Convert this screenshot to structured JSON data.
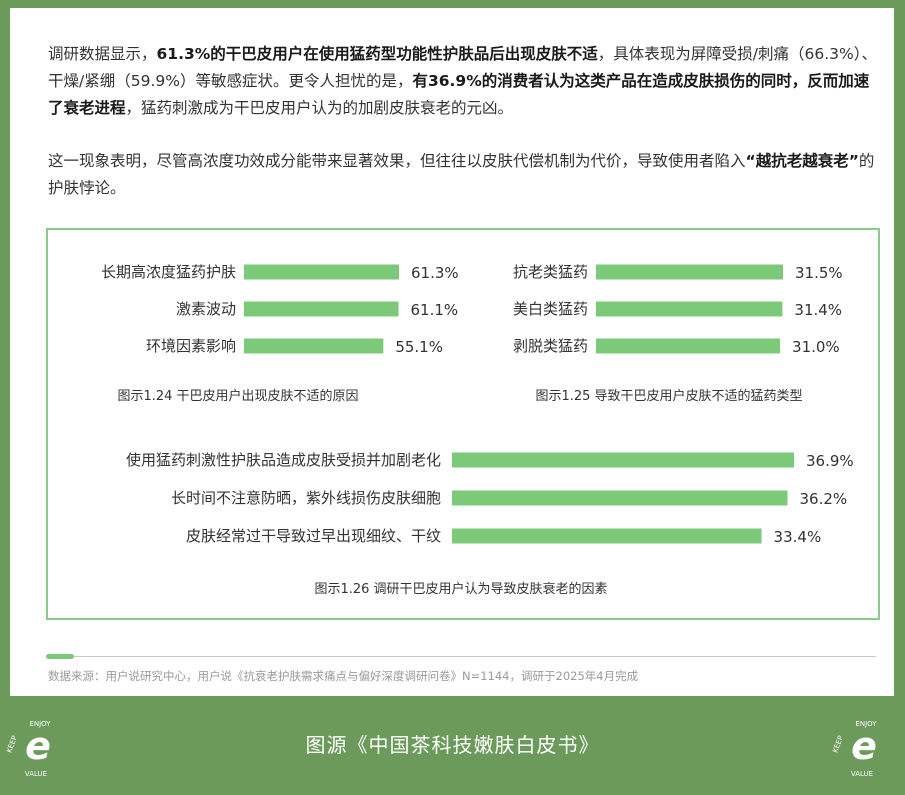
{
  "intro": {
    "p1": [
      {
        "t": "调研数据显示，",
        "b": false
      },
      {
        "t": "61.3%的干巴皮用户在使用猛药型功能性护肤品后出现皮肤不适",
        "b": true
      },
      {
        "t": "，具体表现为屏障受损/刺痛（66.3%）、干燥/紧绷（59.9%）等敏感症状。更令人担忧的是，",
        "b": false
      },
      {
        "t": "有36.9%的消费者认为这类产品在造成皮肤损伤的同时，反而加速了衰老进程",
        "b": true
      },
      {
        "t": "，猛药刺激成为干巴皮用户认为的加剧皮肤衰老的元凶。",
        "b": false
      }
    ],
    "p2": [
      {
        "t": "这一现象表明，尽管高浓度功效成分能带来显著效果，但往往以皮肤代偿机制为代价，导致使用者陷入",
        "b": false
      },
      {
        "t": "“越抗老越衰老”",
        "b": true
      },
      {
        "t": "的护肤悖论。",
        "b": false
      }
    ]
  },
  "chart_data": [
    {
      "type": "bar",
      "orientation": "horizontal",
      "title": "图示1.24 干巴皮用户出现皮肤不适的原因",
      "categories": [
        "长期高浓度猛药护肤",
        "激素波动",
        "环境因素影响"
      ],
      "values": [
        61.3,
        61.1,
        55.1
      ],
      "value_labels": [
        "61.3%",
        "61.1%",
        "55.1%"
      ],
      "color": "#7cc97a"
    },
    {
      "type": "bar",
      "orientation": "horizontal",
      "title": "图示1.25 导致干巴皮用户皮肤不适的猛药类型",
      "categories": [
        "抗老类猛药",
        "美白类猛药",
        "剥脱类猛药"
      ],
      "values": [
        31.5,
        31.4,
        31.0
      ],
      "value_labels": [
        "31.5%",
        "31.4%",
        "31.0%"
      ],
      "color": "#7cc97a"
    },
    {
      "type": "bar",
      "orientation": "horizontal",
      "title": "图示1.26 调研干巴皮用户认为导致皮肤衰老的因素",
      "categories": [
        "使用猛药刺激性护肤品造成皮肤受损并加剧老化",
        "长时间不注意防晒，紫外线损伤皮肤细胞",
        "皮肤经常过干导致过早出现细纹、干纹"
      ],
      "values": [
        36.9,
        36.2,
        33.4
      ],
      "value_labels": [
        "36.9%",
        "36.2%",
        "33.4%"
      ],
      "color": "#7cc97a"
    }
  ],
  "source": "数据来源：用户说研究中心，用户说《抗衰老护肤需求痛点与偏好深度调研问卷》N=1144，调研于2025年4月完成",
  "footer": "图源《中国茶科技嫩肤白皮书》",
  "logo": {
    "top": "ENJOY",
    "left": "KEEP",
    "bottom": "VALUE",
    "mark": "e"
  }
}
